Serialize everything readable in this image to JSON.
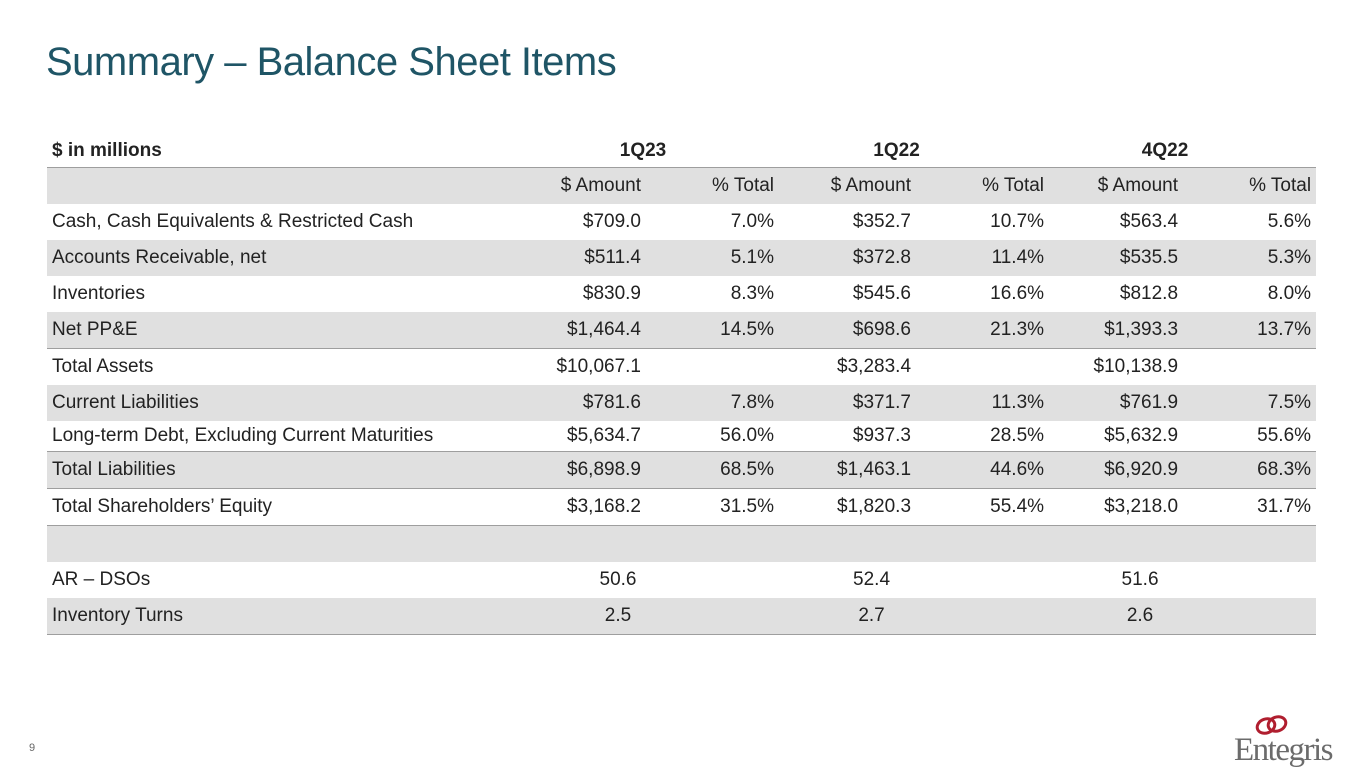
{
  "title": "Summary – Balance Sheet Items",
  "page_number": "9",
  "logo_text": "Entegris",
  "colors": {
    "title": "#1f5566",
    "row_shade": "#e0e0e0",
    "logo_mark": "#b01e2f",
    "logo_text": "#6b6b6b"
  },
  "table": {
    "unit_label": "$ in millions",
    "periods": [
      "1Q23",
      "1Q22",
      "4Q22"
    ],
    "subheaders": [
      "$ Amount",
      "% Total",
      "$ Amount",
      "% Total",
      "$ Amount",
      "% Total"
    ],
    "rows": [
      {
        "label": "Cash, Cash Equivalents & Restricted Cash",
        "values": [
          "$709.0",
          "7.0%",
          "$352.7",
          "10.7%",
          "$563.4",
          "5.6%"
        ]
      },
      {
        "label": "Accounts Receivable, net",
        "values": [
          "$511.4",
          "5.1%",
          "$372.8",
          "11.4%",
          "$535.5",
          "5.3%"
        ]
      },
      {
        "label": "Inventories",
        "values": [
          "$830.9",
          "8.3%",
          "$545.6",
          "16.6%",
          "$812.8",
          "8.0%"
        ]
      },
      {
        "label": "Net PP&E",
        "values": [
          "$1,464.4",
          "14.5%",
          "$698.6",
          "21.3%",
          "$1,393.3",
          "13.7%"
        ]
      },
      {
        "label": "Total Assets",
        "values": [
          "$10,067.1",
          "",
          "$3,283.4",
          "",
          "$10,138.9",
          ""
        ]
      },
      {
        "label": "Current Liabilities",
        "values": [
          "$781.6",
          "7.8%",
          "$371.7",
          "11.3%",
          "$761.9",
          "7.5%"
        ]
      },
      {
        "label": "Long-term Debt, Excluding Current Maturities",
        "values": [
          "$5,634.7",
          "56.0%",
          "$937.3",
          "28.5%",
          "$5,632.9",
          "55.6%"
        ]
      },
      {
        "label": "Total Liabilities",
        "values": [
          "$6,898.9",
          "68.5%",
          "$1,463.1",
          "44.6%",
          "$6,920.9",
          "68.3%"
        ]
      },
      {
        "label": "Total Shareholders’ Equity",
        "values": [
          "$3,168.2",
          "31.5%",
          "$1,820.3",
          "55.4%",
          "$3,218.0",
          "31.7%"
        ]
      }
    ],
    "metrics": [
      {
        "label": "AR – DSOs",
        "values": [
          "50.6",
          "52.4",
          "51.6"
        ]
      },
      {
        "label": "Inventory Turns",
        "values": [
          "2.5",
          "2.7",
          "2.6"
        ]
      }
    ]
  }
}
